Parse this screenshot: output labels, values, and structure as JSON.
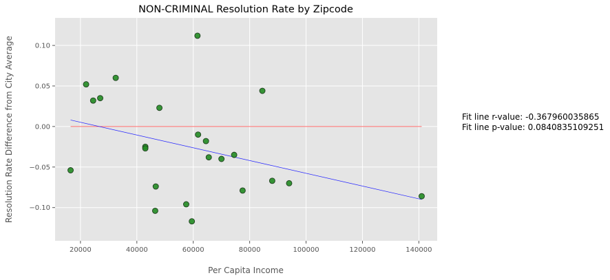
{
  "chart_data": {
    "type": "scatter",
    "title": "NON-CRIMINAL Resolution Rate by Zipcode",
    "xlabel": "Per Capita Income",
    "ylabel": "Resolution Rate Difference from City Average",
    "xlim": [
      11000,
      146500
    ],
    "ylim": [
      -0.141,
      0.134
    ],
    "xticks": [
      20000,
      40000,
      60000,
      80000,
      100000,
      120000,
      140000
    ],
    "yticks": [
      0.1,
      0.05,
      0.0,
      -0.05,
      -0.1
    ],
    "xtick_labels": [
      "20000",
      "40000",
      "60000",
      "80000",
      "100000",
      "120000",
      "140000"
    ],
    "ytick_labels": [
      "0.10",
      "0.05",
      "0.00",
      "−0.05",
      "−0.10"
    ],
    "grid": true,
    "points": [
      {
        "x": 16500,
        "y": -0.054
      },
      {
        "x": 22000,
        "y": 0.052
      },
      {
        "x": 24500,
        "y": 0.032
      },
      {
        "x": 27000,
        "y": 0.035
      },
      {
        "x": 32500,
        "y": 0.06
      },
      {
        "x": 43000,
        "y": -0.025
      },
      {
        "x": 43000,
        "y": -0.027
      },
      {
        "x": 46500,
        "y": -0.104
      },
      {
        "x": 46700,
        "y": -0.074
      },
      {
        "x": 48000,
        "y": 0.023
      },
      {
        "x": 57500,
        "y": -0.096
      },
      {
        "x": 59500,
        "y": -0.117
      },
      {
        "x": 61500,
        "y": 0.112
      },
      {
        "x": 61700,
        "y": -0.01
      },
      {
        "x": 64500,
        "y": -0.018
      },
      {
        "x": 65500,
        "y": -0.038
      },
      {
        "x": 70000,
        "y": -0.04
      },
      {
        "x": 74500,
        "y": -0.035
      },
      {
        "x": 77500,
        "y": -0.079
      },
      {
        "x": 84500,
        "y": 0.044
      },
      {
        "x": 88000,
        "y": -0.067
      },
      {
        "x": 94000,
        "y": -0.07
      },
      {
        "x": 141000,
        "y": -0.086
      }
    ],
    "fit_line": {
      "x": [
        16500,
        141000
      ],
      "y": [
        0.008,
        -0.09
      ]
    },
    "zero_line": {
      "x": [
        16500,
        141000
      ],
      "y": 0.0
    },
    "annotations": [
      "Fit line r-value: -0.367960035865",
      "Fit line p-value: 0.0840835109251"
    ]
  },
  "colors": {
    "plot_background": "#e5e5e5",
    "grid": "#ffffff",
    "points_fill": "#228b22",
    "points_edge": "#1f3f1f",
    "fit_line": "#2020ff",
    "zero_line": "#ff6b6b"
  }
}
